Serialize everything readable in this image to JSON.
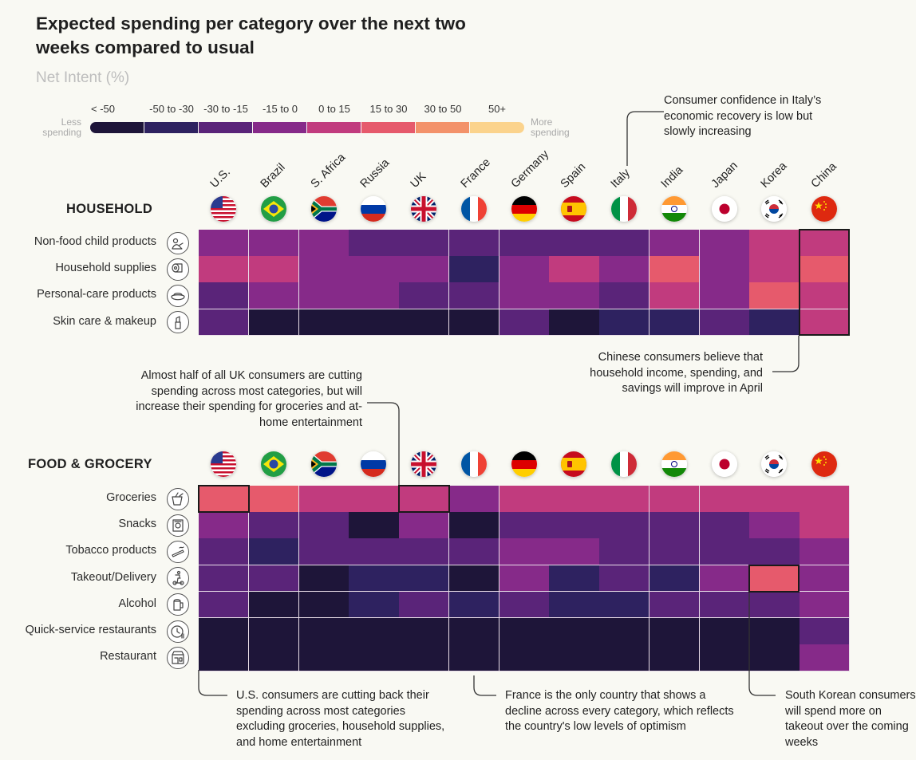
{
  "title": "Expected spending per category over the next two weeks compared to usual",
  "subtitle": "Net Intent (%)",
  "legend": {
    "less_label": "Less spending",
    "more_label": "More spending",
    "bins": [
      {
        "label": "< -50",
        "color": "#1e1539"
      },
      {
        "label": "-50 to -30",
        "color": "#2e2260"
      },
      {
        "label": "-30 to -15",
        "color": "#5a2479"
      },
      {
        "label": "-15 to 0",
        "color": "#862a89"
      },
      {
        "label": "0 to 15",
        "color": "#c13b7e"
      },
      {
        "label": "15 to 30",
        "color": "#e65a6c"
      },
      {
        "label": "30 to 50",
        "color": "#f3926a"
      },
      {
        "label": "50+",
        "color": "#fbd38c"
      }
    ]
  },
  "countries": [
    {
      "name": "U.S.",
      "flag": "us-flag-icon"
    },
    {
      "name": "Brazil",
      "flag": "brazil-flag-icon"
    },
    {
      "name": "S. Africa",
      "flag": "south-africa-flag-icon"
    },
    {
      "name": "Russia",
      "flag": "russia-flag-icon"
    },
    {
      "name": "UK",
      "flag": "uk-flag-icon"
    },
    {
      "name": "France",
      "flag": "france-flag-icon"
    },
    {
      "name": "Germany",
      "flag": "germany-flag-icon"
    },
    {
      "name": "Spain",
      "flag": "spain-flag-icon"
    },
    {
      "name": "Italy",
      "flag": "italy-flag-icon"
    },
    {
      "name": "India",
      "flag": "india-flag-icon"
    },
    {
      "name": "Japan",
      "flag": "japan-flag-icon"
    },
    {
      "name": "Korea",
      "flag": "korea-flag-icon"
    },
    {
      "name": "China",
      "flag": "china-flag-icon"
    }
  ],
  "chart_data": [
    {
      "type": "heatmap",
      "title": "HOUSEHOLD",
      "value_kind": "legend bin index (0 = < -50 ... 7 = 50+)",
      "rows": [
        {
          "label": "Non-food child products",
          "icon": "child-products-icon",
          "values": [
            3,
            3,
            3,
            2,
            2,
            2,
            2,
            2,
            2,
            3,
            3,
            4,
            4
          ]
        },
        {
          "label": "Household supplies",
          "icon": "toilet-paper-icon",
          "values": [
            4,
            4,
            3,
            3,
            3,
            1,
            3,
            4,
            3,
            5,
            3,
            4,
            5
          ]
        },
        {
          "label": "Personal-care products",
          "icon": "soap-icon",
          "values": [
            2,
            3,
            3,
            3,
            2,
            2,
            3,
            3,
            2,
            4,
            3,
            5,
            4
          ]
        },
        {
          "label": "Skin care & makeup",
          "icon": "lipstick-icon",
          "values": [
            2,
            0,
            0,
            0,
            0,
            0,
            2,
            0,
            1,
            1,
            2,
            1,
            4
          ]
        }
      ]
    },
    {
      "type": "heatmap",
      "title": "FOOD & GROCERY",
      "value_kind": "legend bin index (0 = < -50 ... 7 = 50+)",
      "rows": [
        {
          "label": "Groceries",
          "icon": "groceries-icon",
          "values": [
            5,
            5,
            4,
            4,
            4,
            3,
            4,
            4,
            4,
            4,
            4,
            4,
            4
          ]
        },
        {
          "label": "Snacks",
          "icon": "snacks-icon",
          "values": [
            3,
            2,
            2,
            0,
            3,
            0,
            2,
            2,
            2,
            2,
            2,
            3,
            4
          ]
        },
        {
          "label": "Tobacco products",
          "icon": "cigarette-icon",
          "values": [
            2,
            1,
            2,
            2,
            2,
            2,
            3,
            3,
            2,
            2,
            2,
            2,
            3
          ]
        },
        {
          "label": "Takeout/Delivery",
          "icon": "delivery-icon",
          "values": [
            2,
            2,
            0,
            1,
            1,
            0,
            3,
            1,
            2,
            1,
            3,
            5,
            3
          ]
        },
        {
          "label": "Alcohol",
          "icon": "beer-icon",
          "values": [
            2,
            0,
            0,
            1,
            2,
            1,
            2,
            1,
            1,
            2,
            2,
            2,
            3
          ]
        },
        {
          "label": "Quick-service restaurants",
          "icon": "fast-food-icon",
          "values": [
            0,
            0,
            0,
            0,
            0,
            0,
            0,
            0,
            0,
            0,
            0,
            0,
            2
          ]
        },
        {
          "label": "Restaurant",
          "icon": "restaurant-icon",
          "values": [
            0,
            0,
            0,
            0,
            0,
            0,
            0,
            0,
            0,
            0,
            0,
            0,
            3
          ]
        }
      ]
    }
  ],
  "annotations": {
    "italy": "Consumer confidence in Italy’s economic recovery is low but slowly increasing",
    "china": "Chinese consumers believe that household income, spending, and savings will improve in April",
    "uk": "Almost half of all UK consumers are cutting spending across most categories, but will increase their spending for groceries and at-home entertainment",
    "us": "U.S. consumers are cutting back their spending across most categories excluding groceries, household supplies, and home entertainment",
    "france": "France is the only country that shows a decline across every category, which reflects the country's low levels of optimism",
    "korea": "South Korean consumers will spend more on takeout over the coming weeks"
  }
}
